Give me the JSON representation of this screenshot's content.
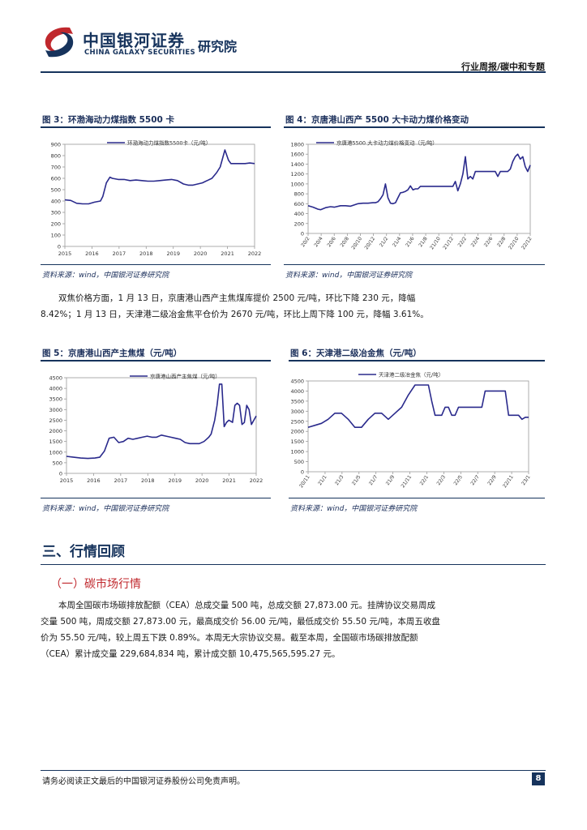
{
  "header": {
    "brand_cn": "中国银河证券",
    "brand_en": "CHINA GALAXY SECURITIES",
    "brand_inst": "研究院",
    "report_type": "行业周报/碳中和专题"
  },
  "figures": [
    {
      "title": "图 3：环渤海动力煤指数 5500 卡",
      "source": "资料来源：wind，中国银河证券研究院",
      "chart_data": {
        "type": "line",
        "legend": "环渤海动力煤指数5500卡（元/吨）",
        "x_tick_labels": [
          "2015",
          "2016",
          "2017",
          "2018",
          "2019",
          "2020",
          "2021",
          "2022"
        ],
        "y_tick_labels": [
          "0",
          "100",
          "200",
          "300",
          "400",
          "500",
          "600",
          "700",
          "800",
          "900"
        ],
        "ylim": [
          0,
          900
        ],
        "x": [
          2015.0,
          2015.25,
          2015.5,
          2015.75,
          2016.0,
          2016.25,
          2016.5,
          2016.6,
          2016.75,
          2016.9,
          2017.0,
          2017.25,
          2017.5,
          2017.75,
          2018.0,
          2018.25,
          2018.5,
          2018.75,
          2019.0,
          2019.25,
          2019.5,
          2019.75,
          2020.0,
          2020.2,
          2020.4,
          2020.6,
          2020.8,
          2021.0,
          2021.2,
          2021.4,
          2021.55,
          2021.75,
          2021.9,
          2022.0,
          2022.2,
          2022.4,
          2022.6,
          2022.8,
          2023.0
        ],
        "y": [
          410,
          405,
          380,
          375,
          375,
          390,
          400,
          440,
          560,
          610,
          600,
          590,
          590,
          580,
          585,
          580,
          575,
          575,
          580,
          585,
          590,
          580,
          550,
          540,
          540,
          550,
          560,
          580,
          600,
          650,
          700,
          850,
          760,
          730,
          730,
          730,
          730,
          735,
          730
        ]
      }
    },
    {
      "title": "图 4：京唐港山西产 5500 大卡动力煤价格变动",
      "source": "资料来源：wind，中国银河证券研究院",
      "chart_data": {
        "type": "line",
        "legend": "京唐港5500 大卡动力煤价格变动（元/吨）",
        "x_tick_labels": [
          "20/2",
          "20/4",
          "20/6",
          "20/8",
          "20/10",
          "20/12",
          "21/2",
          "21/4",
          "21/6",
          "21/8",
          "21/10",
          "21/12",
          "22/2",
          "22/4",
          "22/6",
          "22/8",
          "22/10",
          "22/12"
        ],
        "y_tick_labels": [
          "0",
          "200",
          "400",
          "600",
          "800",
          "1000",
          "1200",
          "1400",
          "1600",
          "1800"
        ],
        "ylim": [
          0,
          1800
        ],
        "x": [
          0,
          0.4,
          0.8,
          1.0,
          1.4,
          1.8,
          2.1,
          2.6,
          3.0,
          3.4,
          4.0,
          4.4,
          4.8,
          5.2,
          5.4,
          5.6,
          5.8,
          6.0,
          6.2,
          6.4,
          6.6,
          6.8,
          7.0,
          7.2,
          7.4,
          7.6,
          7.8,
          8.0,
          8.2,
          8.4,
          8.6,
          8.8,
          9.0,
          9.2,
          9.4,
          9.6,
          9.8,
          10.0,
          10.2,
          10.4,
          10.6,
          10.8,
          11.0,
          11.2,
          11.4,
          11.6,
          11.8,
          12.0,
          12.2,
          12.4,
          12.6,
          12.8,
          13.0,
          13.2,
          13.4,
          13.6,
          13.8,
          14.0,
          14.2,
          14.4,
          14.6,
          14.8,
          15.0,
          15.2,
          15.4,
          15.6,
          15.8,
          16.0,
          16.2,
          16.4,
          16.6,
          16.8,
          17.0,
          17.2,
          17.4,
          17.6,
          17.8
        ],
        "y": [
          560,
          530,
          490,
          480,
          520,
          540,
          530,
          560,
          560,
          550,
          600,
          610,
          610,
          620,
          620,
          640,
          700,
          780,
          1000,
          720,
          610,
          600,
          620,
          720,
          820,
          830,
          850,
          880,
          960,
          880,
          900,
          900,
          950,
          950,
          950,
          950,
          950,
          950,
          950,
          950,
          950,
          950,
          950,
          950,
          950,
          950,
          1050,
          860,
          1000,
          1200,
          1550,
          1100,
          1150,
          1100,
          1250,
          1250,
          1250,
          1250,
          1250,
          1250,
          1250,
          1250,
          1250,
          1150,
          1250,
          1250,
          1250,
          1250,
          1300,
          1450,
          1550,
          1600,
          1500,
          1550,
          1350,
          1250,
          1380
        ]
      }
    },
    {
      "title": "图 5：京唐港山西产主焦煤（元/吨）",
      "source": "资料来源：wind，中国银河证券研究院",
      "chart_data": {
        "type": "line",
        "legend": "京唐港山西产主焦煤（元/吨）",
        "x_tick_labels": [
          "2015",
          "2016",
          "2017",
          "2018",
          "2019",
          "2020",
          "2021",
          "2022"
        ],
        "y_tick_labels": [
          "0",
          "500",
          "1000",
          "1500",
          "2000",
          "2500",
          "3000",
          "3500",
          "4000",
          "4500"
        ],
        "ylim": [
          0,
          4500
        ],
        "x": [
          2015.0,
          2015.3,
          2015.6,
          2015.9,
          2016.2,
          2016.4,
          2016.6,
          2016.8,
          2017.0,
          2017.2,
          2017.4,
          2017.6,
          2017.8,
          2018.0,
          2018.2,
          2018.4,
          2018.6,
          2018.8,
          2019.0,
          2019.2,
          2019.4,
          2019.6,
          2019.8,
          2020.0,
          2020.2,
          2020.4,
          2020.6,
          2020.8,
          2021.0,
          2021.1,
          2021.25,
          2021.35,
          2021.45,
          2021.55,
          2021.65,
          2021.75,
          2021.85,
          2022.0,
          2022.1,
          2022.2,
          2022.3,
          2022.4,
          2022.5,
          2022.6,
          2022.7,
          2022.8,
          2022.9,
          2023.0
        ],
        "y": [
          800,
          760,
          720,
          700,
          720,
          760,
          1050,
          1650,
          1700,
          1450,
          1500,
          1650,
          1600,
          1650,
          1700,
          1750,
          1700,
          1700,
          1800,
          1750,
          1700,
          1650,
          1600,
          1450,
          1400,
          1400,
          1400,
          1500,
          1700,
          1850,
          2500,
          3200,
          4200,
          4200,
          2200,
          2400,
          2500,
          2400,
          3200,
          3300,
          3200,
          2300,
          2400,
          3200,
          3000,
          2300,
          2500,
          2700
        ]
      }
    },
    {
      "title": "图 6：天津港二级冶金焦（元/吨）",
      "source": "资料来源：wind，中国银河证券研究院",
      "chart_data": {
        "type": "line",
        "legend": "天津港二级冶金焦（元/吨）",
        "x_tick_labels": [
          "20/11",
          "21/1",
          "21/3",
          "21/5",
          "21/7",
          "21/9",
          "21/11",
          "22/1",
          "22/3",
          "22/5",
          "22/7",
          "22/9",
          "22/11",
          "23/1"
        ],
        "y_tick_labels": [
          "0",
          "500",
          "1000",
          "1500",
          "2000",
          "2500",
          "3000",
          "3500",
          "4000",
          "4500"
        ],
        "ylim": [
          0,
          4500
        ],
        "x": [
          0,
          0.4,
          0.8,
          1.2,
          1.6,
          2.0,
          2.4,
          2.8,
          3.2,
          3.6,
          4.0,
          4.4,
          4.8,
          5.2,
          5.6,
          6.0,
          6.4,
          6.8,
          7.2,
          7.4,
          7.6,
          7.8,
          8.0,
          8.2,
          8.4,
          8.6,
          8.8,
          9.0,
          9.4,
          9.8,
          10.2,
          10.4,
          10.6,
          11.0,
          11.4,
          11.8,
          12.0,
          12.2,
          12.4,
          12.6,
          12.8,
          13.0,
          13.2
        ],
        "y": [
          2200,
          2300,
          2400,
          2600,
          2900,
          2900,
          2600,
          2200,
          2200,
          2600,
          2900,
          2900,
          2600,
          2900,
          3200,
          3800,
          4300,
          4300,
          4300,
          3500,
          2800,
          2800,
          2800,
          3200,
          3200,
          2800,
          2800,
          3200,
          3200,
          3200,
          3200,
          3200,
          4000,
          4000,
          4000,
          4000,
          2800,
          2800,
          2800,
          2800,
          2600,
          2700,
          2700
        ]
      }
    }
  ],
  "body": {
    "paragraph_1": "双焦价格方面，1 月 13 日，京唐港山西产主焦煤库提价 2500 元/吨，环比下降 230 元，降幅 8.42%；1 月 13 日，天津港二级冶金焦平仓价为 2670 元/吨，环比上周下降 100 元，降幅 3.61%。",
    "section_title": "三、行情回顾",
    "subsection_title": "（一）碳市场行情",
    "paragraph_2": "本周全国碳市场碳排放配额（CEA）总成交量 500 吨，总成交额 27,873.00 元。挂牌协议交易周成交量 500 吨，周成交额 27,873.00 元，最高成交价 56.00 元/吨，最低成交价 55.50 元/吨，本周五收盘价为 55.50 元/吨，较上周五下跌 0.89%。本周无大宗协议交易。截至本周，全国碳市场碳排放配额（CEA）累计成交量 229,684,834 吨，累计成交额 10,475,565,595.27 元。"
  },
  "footer": {
    "disclaimer": "请务必阅读正文最后的中国银河证券股份公司免责声明。",
    "page_number": "8"
  },
  "colors": {
    "brand_navy": "#16335c",
    "brand_red": "#c0282d",
    "series_line": "#2a2a8c"
  }
}
